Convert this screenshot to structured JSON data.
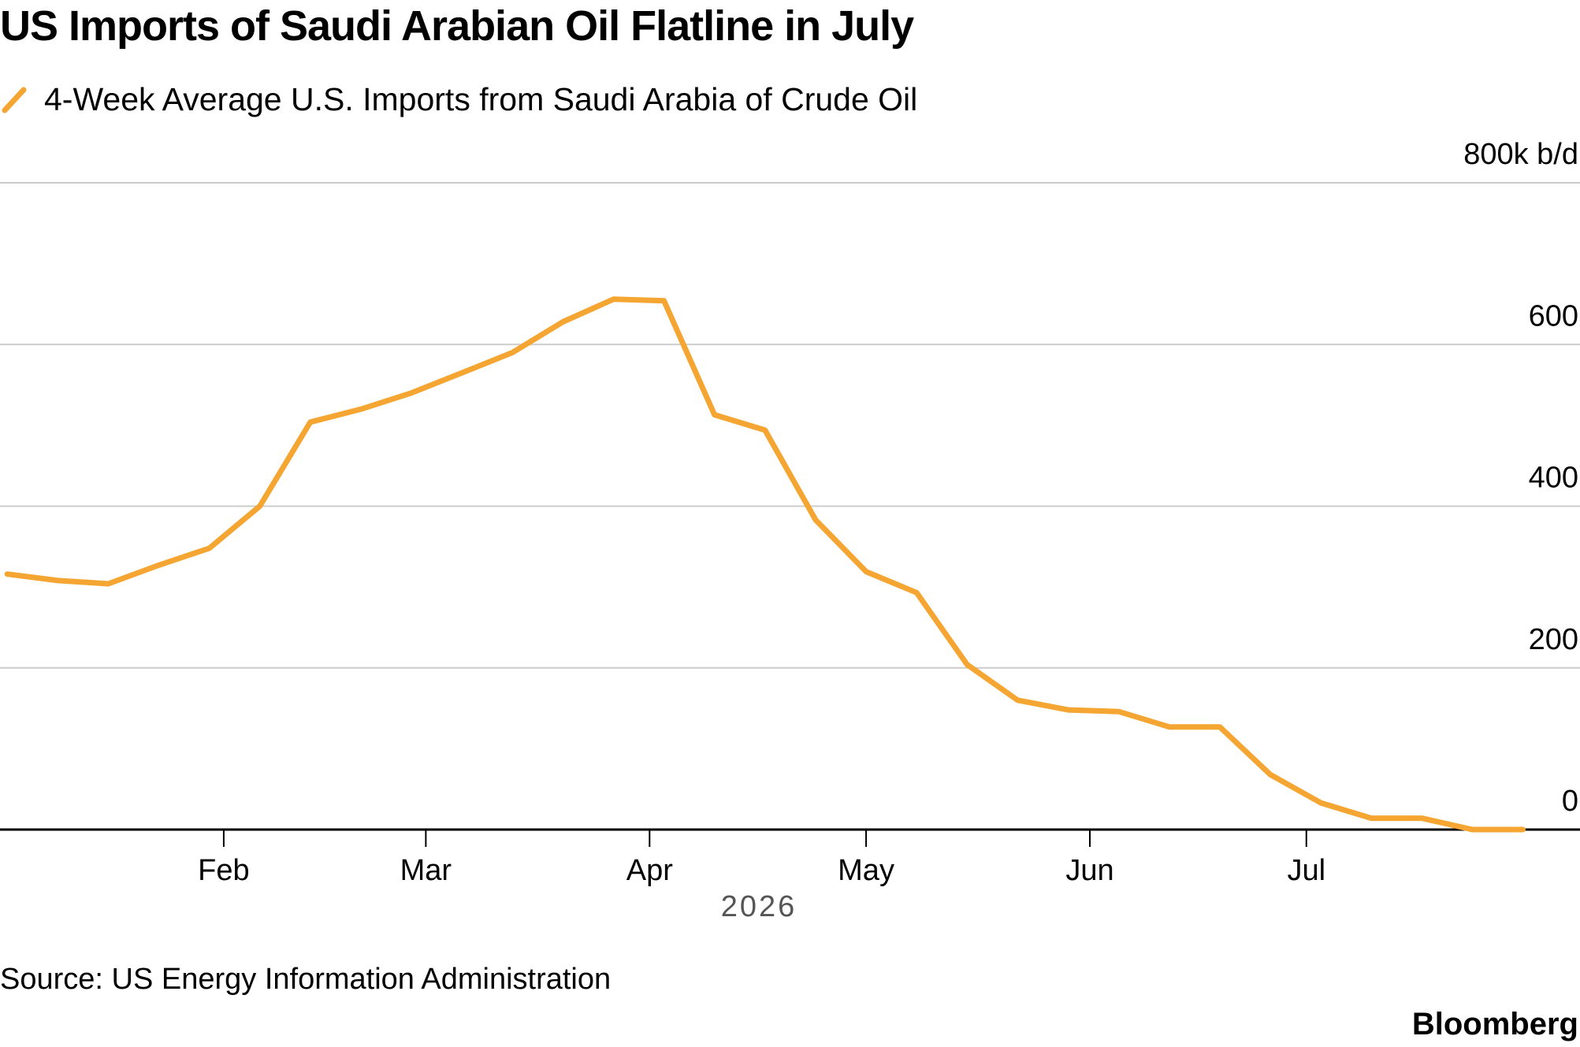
{
  "title": "US Imports of Saudi Arabian Oil Flatline in July",
  "source": "Source: US Energy Information Administration",
  "brand": "Bloomberg",
  "colors": {
    "line": "#f5a531",
    "grid": "#cccccc",
    "axis": "#000000"
  },
  "chart_data": {
    "type": "line",
    "title": "US Imports of Saudi Arabian Oil Flatline in July",
    "series": [
      {
        "name": "4-Week Average U.S. Imports from Saudi Arabia of Crude Oil",
        "x": [
          "2026-01-02",
          "2026-01-09",
          "2026-01-16",
          "2026-01-23",
          "2026-01-30",
          "2026-02-06",
          "2026-02-13",
          "2026-02-20",
          "2026-02-27",
          "2026-03-06",
          "2026-03-13",
          "2026-03-20",
          "2026-03-27",
          "2026-04-03",
          "2026-04-10",
          "2026-04-17",
          "2026-04-24",
          "2026-05-01",
          "2026-05-08",
          "2026-05-15",
          "2026-05-22",
          "2026-05-29",
          "2026-06-05",
          "2026-06-12",
          "2026-06-19",
          "2026-06-26",
          "2026-07-03",
          "2026-07-10",
          "2026-07-17",
          "2026-07-24",
          "2026-07-31"
        ],
        "y": [
          316,
          308,
          304,
          327,
          348,
          400,
          504,
          520,
          540,
          565,
          590,
          628,
          656,
          654,
          513,
          494,
          383,
          319,
          293,
          204,
          160,
          148,
          146,
          127,
          127,
          68,
          33,
          14,
          14,
          0,
          0
        ]
      }
    ],
    "x_ticks": [
      {
        "label": "Feb",
        "date": "2026-02-01"
      },
      {
        "label": "Mar",
        "date": "2026-03-01"
      },
      {
        "label": "Apr",
        "date": "2026-04-01"
      },
      {
        "label": "May",
        "date": "2026-05-01"
      },
      {
        "label": "Jun",
        "date": "2026-06-01"
      },
      {
        "label": "Jul",
        "date": "2026-07-01"
      }
    ],
    "x_axis_year": "2026",
    "y_ticks": [
      {
        "value": 0,
        "label": "0"
      },
      {
        "value": 200,
        "label": "200"
      },
      {
        "value": 400,
        "label": "400"
      },
      {
        "value": 600,
        "label": "600"
      },
      {
        "value": 800,
        "label": "800k b/d"
      }
    ],
    "ylim": [
      0,
      800
    ],
    "xlim": [
      "2026-01-01",
      "2026-08-03"
    ],
    "grid": true,
    "legend": "top-left"
  }
}
